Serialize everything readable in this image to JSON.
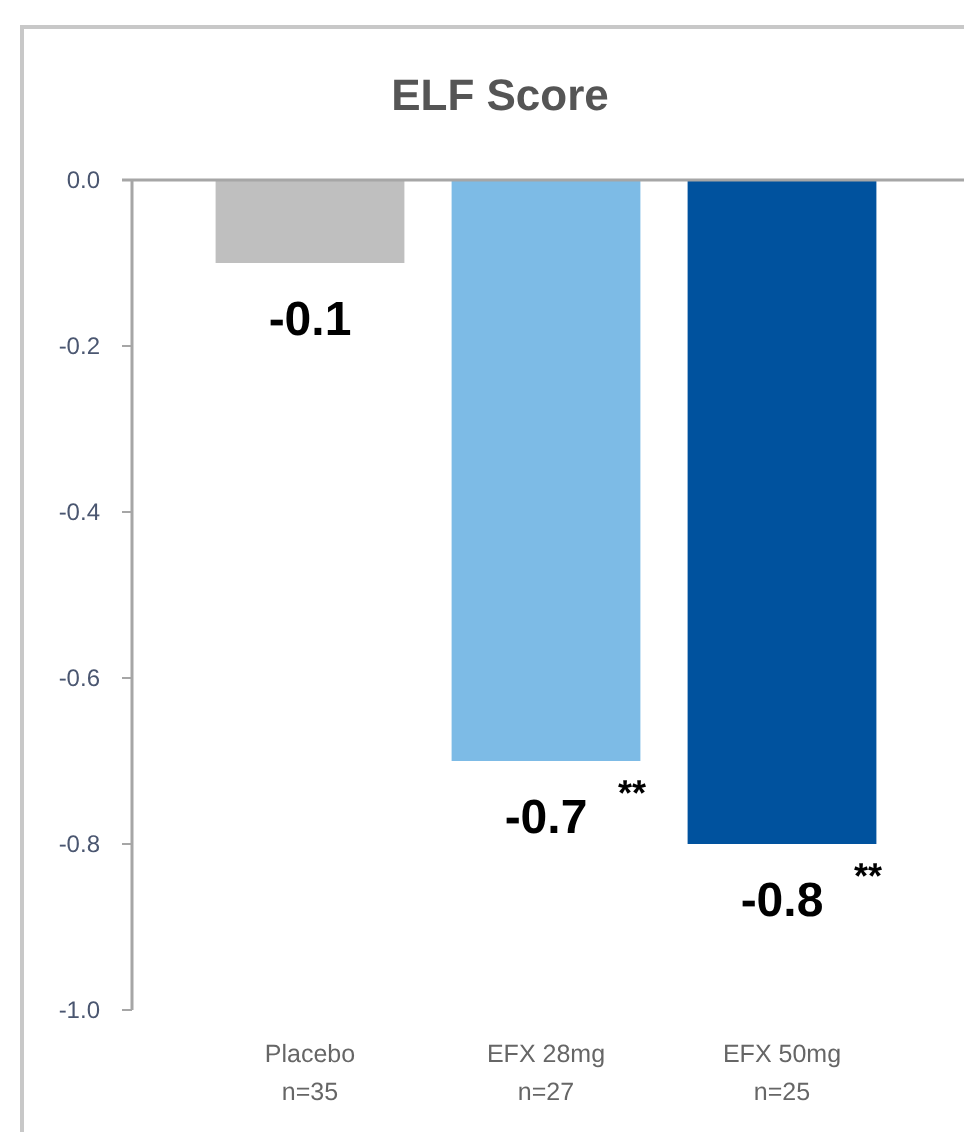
{
  "chart_data": {
    "type": "bar",
    "title": "ELF Score",
    "categories": [
      "Placebo\nn=35",
      "EFX 28mg\nn=27",
      "EFX 50mg\nn=25"
    ],
    "values": [
      -0.1,
      -0.7,
      -0.8
    ],
    "colors": [
      "#bfbfbf",
      "#7dbbe6",
      "#00529e"
    ],
    "ylim": [
      -1.0,
      0.0
    ],
    "yticks": [
      {
        "value": 0,
        "label": "0.0"
      },
      {
        "value": -0.2,
        "label": "-0.2"
      },
      {
        "value": -0.4,
        "label": "-0.4"
      },
      {
        "value": -0.6,
        "label": "-0.6"
      },
      {
        "value": -0.8,
        "label": "-0.8"
      },
      {
        "value": -1.0,
        "label": "-1.0"
      }
    ],
    "data_labels": true,
    "annotations": [
      {
        "text": "**",
        "x": "EFX 28mg\nn=27",
        "y": -0.7
      },
      {
        "text": "**",
        "x": "EFX 50mg\nn=25",
        "y": -0.8
      }
    ]
  }
}
